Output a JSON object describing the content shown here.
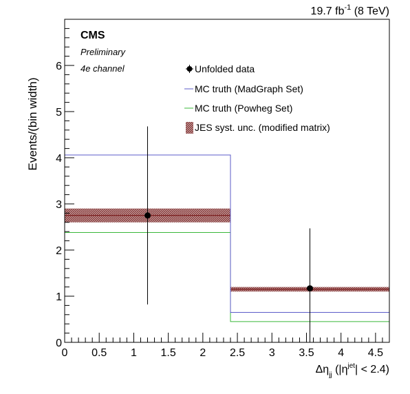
{
  "chart_data": {
    "type": "histogram",
    "lumi_label": {
      "value": "19.7 fb",
      "sup": "-1",
      "energy": " (8 TeV)"
    },
    "experiment": "CMS",
    "status": "Preliminary",
    "channel": "4e channel",
    "xlabel": {
      "prefix": "Δη",
      "sub": "jj",
      "middle": " (|η",
      "sup": "jet",
      "suffix": "| < 2.4)"
    },
    "ylabel": "Events/(bin width)",
    "xlim": [
      0,
      4.7
    ],
    "ylim": [
      0,
      7
    ],
    "x_ticks": [
      "0",
      "0.5",
      "1",
      "1.5",
      "2",
      "2.5",
      "3",
      "3.5",
      "4",
      "4.5"
    ],
    "x_tick_values": [
      0,
      0.5,
      1,
      1.5,
      2,
      2.5,
      3,
      3.5,
      4,
      4.5
    ],
    "y_ticks": [
      "0",
      "1",
      "2",
      "3",
      "4",
      "5",
      "6"
    ],
    "y_tick_values": [
      0,
      1,
      2,
      3,
      4,
      5,
      6
    ],
    "bin_edges": [
      0,
      2.4,
      4.7
    ],
    "legend": {
      "data": "Unfolded data",
      "madgraph": "MC truth (MadGraph Set)",
      "powheg": "MC truth (Powheg Set)",
      "jes": "JES syst. unc. (modified matrix)"
    },
    "colors": {
      "data": "#000000",
      "madgraph": "#5b5bc8",
      "powheg": "#38b838",
      "jes_fill": "#b07a7a",
      "jes_line": "#7a1a1a"
    },
    "series": {
      "data": [
        {
          "x": 1.2,
          "y": 2.75,
          "ylow": 0.82,
          "yhigh": 4.68
        },
        {
          "x": 3.55,
          "y": 1.17,
          "ylow": 0.0,
          "yhigh": 2.47
        }
      ],
      "madgraph": [
        4.06,
        0.65
      ],
      "powheg": [
        2.38,
        0.45
      ],
      "jes": [
        {
          "center": 2.75,
          "low": 2.6,
          "high": 2.9
        },
        {
          "center": 1.15,
          "low": 1.1,
          "high": 1.2
        }
      ]
    }
  }
}
